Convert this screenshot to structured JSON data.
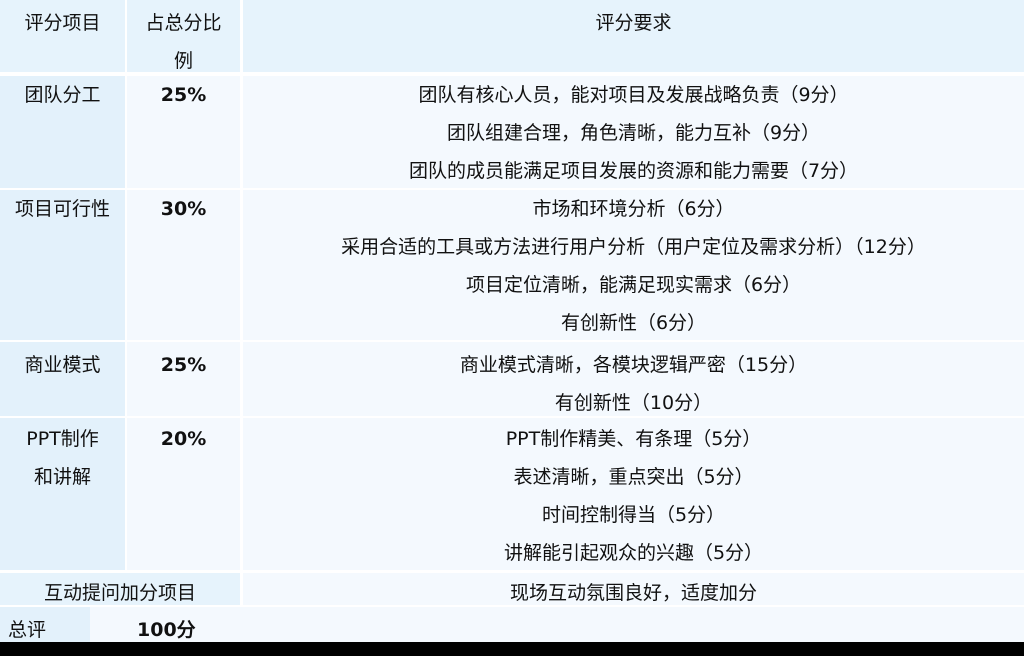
{
  "header": {
    "item": "评分项目",
    "ratio": "占总分比例",
    "requirements": "评分要求"
  },
  "rows": [
    {
      "item": "团队分工",
      "ratio": "25%",
      "requirements": [
        "团队有核心人员，能对项目及发展战略负责（9分）",
        "团队组建合理，角色清晰，能力互补（9分）",
        "团队的成员能满足项目发展的资源和能力需要（7分）"
      ]
    },
    {
      "item": "项目可行性",
      "ratio": "30%",
      "requirements": [
        "市场和环境分析（6分）",
        "采用合适的工具或方法进行用户分析（用户定位及需求分析）（12分）",
        "项目定位清晰，能满足现实需求（6分）",
        "有创新性（6分）"
      ]
    },
    {
      "item": "商业模式",
      "ratio": "25%",
      "requirements": [
        "商业模式清晰，各模块逻辑严密（15分）",
        "有创新性（10分）"
      ]
    },
    {
      "item": "PPT制作和讲解",
      "ratio": "20%",
      "requirements": [
        "PPT制作精美、有条理（5分）",
        "表述清晰，重点突出（5分）",
        "时间控制得当（5分）",
        "讲解能引起观众的兴趣（5分）"
      ]
    }
  ],
  "bonus": {
    "item": "互动提问加分项目",
    "requirements": "现场互动氛围良好，适度加分"
  },
  "total": {
    "label": "总评",
    "value": "100分"
  }
}
